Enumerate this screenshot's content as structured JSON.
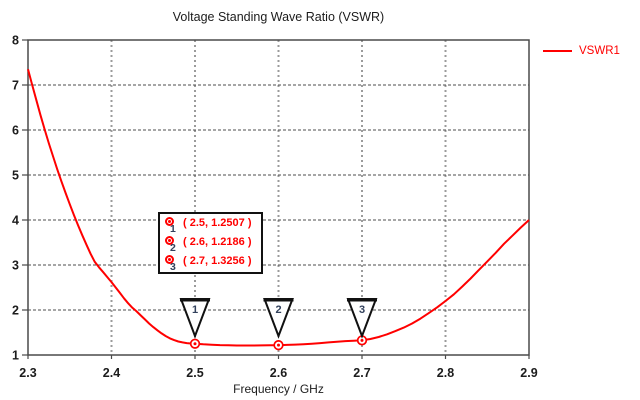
{
  "title": "Voltage Standing Wave Ratio (VSWR)",
  "legend": {
    "label": "VSWR1",
    "color": "#ff0000"
  },
  "axes": {
    "xlabel": "Frequency / GHz",
    "x_tick_labels": [
      "2.3",
      "2.4",
      "2.5",
      "2.6",
      "2.7",
      "2.8",
      "2.9"
    ],
    "y_tick_labels": [
      "1",
      "2",
      "3",
      "4",
      "5",
      "6",
      "7",
      "8"
    ]
  },
  "colors": {
    "curve": "#ff0000",
    "frame": "#4a4a4a",
    "grid_horizontal": "#4d4d4d",
    "grid_vertical": "#9b9b9b",
    "text": "#1c1c1c",
    "marker_number": "#32415c",
    "marker_flag_fill": "#ffffff",
    "marker_flag_border": "#111111",
    "background": "#ffffff"
  },
  "marker_box": {
    "rows": [
      {
        "index": "1",
        "text": "( 2.5, 1.2507 )"
      },
      {
        "index": "2",
        "text": "( 2.6, 1.2186 )"
      },
      {
        "index": "3",
        "text": "( 2.7, 1.3256 )"
      }
    ]
  },
  "chart_data": {
    "type": "line",
    "title": "Voltage Standing Wave Ratio (VSWR)",
    "xlabel": "Frequency / GHz",
    "ylabel": "",
    "xlim": [
      2.3,
      2.9
    ],
    "ylim": [
      1,
      8
    ],
    "x_ticks": [
      2.3,
      2.4,
      2.5,
      2.6,
      2.7,
      2.8,
      2.9
    ],
    "y_ticks": [
      1,
      2,
      3,
      4,
      5,
      6,
      7,
      8
    ],
    "grid": true,
    "legend_position": "top-right",
    "series": [
      {
        "name": "VSWR1",
        "color": "#ff0000",
        "points": [
          [
            2.3,
            7.35
          ],
          [
            2.305,
            7.0
          ],
          [
            2.31,
            6.66
          ],
          [
            2.315,
            6.33
          ],
          [
            2.32,
            6.01
          ],
          [
            2.325,
            5.7
          ],
          [
            2.33,
            5.41
          ],
          [
            2.335,
            5.13
          ],
          [
            2.34,
            4.86
          ],
          [
            2.345,
            4.6
          ],
          [
            2.35,
            4.35
          ],
          [
            2.355,
            4.11
          ],
          [
            2.36,
            3.88
          ],
          [
            2.365,
            3.66
          ],
          [
            2.37,
            3.45
          ],
          [
            2.375,
            3.25
          ],
          [
            2.38,
            3.07
          ],
          [
            2.385,
            2.95
          ],
          [
            2.39,
            2.84
          ],
          [
            2.395,
            2.73
          ],
          [
            2.4,
            2.62
          ],
          [
            2.405,
            2.5
          ],
          [
            2.41,
            2.38
          ],
          [
            2.415,
            2.26
          ],
          [
            2.42,
            2.15
          ],
          [
            2.425,
            2.05
          ],
          [
            2.43,
            1.97
          ],
          [
            2.435,
            1.88
          ],
          [
            2.44,
            1.79
          ],
          [
            2.445,
            1.7
          ],
          [
            2.45,
            1.62
          ],
          [
            2.455,
            1.55
          ],
          [
            2.46,
            1.48
          ],
          [
            2.465,
            1.42
          ],
          [
            2.47,
            1.37
          ],
          [
            2.475,
            1.33
          ],
          [
            2.48,
            1.3
          ],
          [
            2.485,
            1.28
          ],
          [
            2.49,
            1.265
          ],
          [
            2.495,
            1.256
          ],
          [
            2.5,
            1.2507
          ],
          [
            2.51,
            1.238
          ],
          [
            2.52,
            1.228
          ],
          [
            2.53,
            1.22
          ],
          [
            2.54,
            1.215
          ],
          [
            2.55,
            1.212
          ],
          [
            2.56,
            1.211
          ],
          [
            2.57,
            1.212
          ],
          [
            2.58,
            1.214
          ],
          [
            2.59,
            1.216
          ],
          [
            2.6,
            1.2186
          ],
          [
            2.61,
            1.224
          ],
          [
            2.62,
            1.232
          ],
          [
            2.63,
            1.241
          ],
          [
            2.64,
            1.252
          ],
          [
            2.65,
            1.265
          ],
          [
            2.66,
            1.279
          ],
          [
            2.67,
            1.294
          ],
          [
            2.68,
            1.308
          ],
          [
            2.69,
            1.317
          ],
          [
            2.7,
            1.3256
          ],
          [
            2.71,
            1.355
          ],
          [
            2.72,
            1.4
          ],
          [
            2.73,
            1.46
          ],
          [
            2.74,
            1.53
          ],
          [
            2.75,
            1.61
          ],
          [
            2.76,
            1.7
          ],
          [
            2.77,
            1.81
          ],
          [
            2.78,
            1.93
          ],
          [
            2.79,
            2.06
          ],
          [
            2.8,
            2.2
          ],
          [
            2.81,
            2.35
          ],
          [
            2.82,
            2.52
          ],
          [
            2.83,
            2.7
          ],
          [
            2.84,
            2.89
          ],
          [
            2.85,
            3.08
          ],
          [
            2.86,
            3.27
          ],
          [
            2.87,
            3.47
          ],
          [
            2.88,
            3.65
          ],
          [
            2.89,
            3.83
          ],
          [
            2.9,
            4.0
          ]
        ]
      }
    ],
    "annotations": [
      {
        "n": "1",
        "x": 2.5,
        "y": 1.2507,
        "label": "( 2.5, 1.2507 )"
      },
      {
        "n": "2",
        "x": 2.6,
        "y": 1.2186,
        "label": "( 2.6, 1.2186 )"
      },
      {
        "n": "3",
        "x": 2.7,
        "y": 1.3256,
        "label": "( 2.7, 1.3256 )"
      }
    ]
  }
}
